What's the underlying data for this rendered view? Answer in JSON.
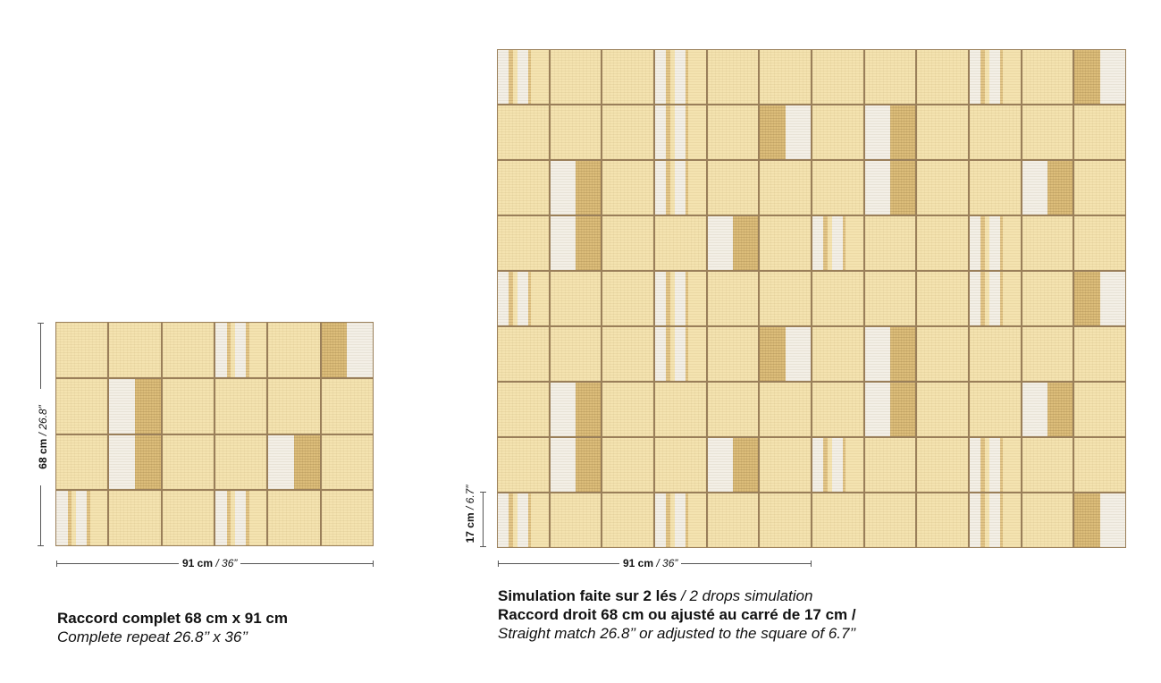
{
  "left_panel": {
    "cols": 6,
    "rows": 4,
    "height_label": {
      "metric": "68 cm",
      "sep": " / ",
      "imperial": "26.8”"
    },
    "width_label": {
      "metric": "91 cm",
      "sep": " / ",
      "imperial": "36”"
    },
    "caption_bold": "Raccord complet 68 cm x 91 cm",
    "caption_italic": "Complete repeat 26.8’’ x 36’’"
  },
  "right_panel": {
    "cols": 12,
    "rows": 9,
    "height_label": {
      "metric": "17 cm",
      "sep": " / ",
      "imperial": "6.7”"
    },
    "width_label": {
      "metric": "91 cm",
      "sep": " / ",
      "imperial": "36”"
    },
    "caption_line1_bold": "Simulation faite sur 2 lés",
    "caption_line1_italic": " / 2 drops simulation",
    "caption_line2_bold": "Raccord droit 68 cm ou ajusté au carré de 17 cm /",
    "caption_line3_italic": "Straight match 26.8’’ or adjusted to the square of 6.7’’"
  },
  "colors": {
    "cream": "#f4e3b0",
    "white": "#f3efe6",
    "tan": "#dcbd7a",
    "grout": "#9a7f5a"
  },
  "tile_types": {
    "P": "plain",
    "S": "stripes-white-cream",
    "W": "white-left-tan-right",
    "T": "tan-left-white-right",
    "C": "cream-left-tan-right"
  },
  "left_pattern": [
    [
      "P",
      "P",
      "P",
      "S",
      "P",
      "T"
    ],
    [
      "P",
      "W",
      "P",
      "P",
      "P",
      "P"
    ],
    [
      "P",
      "W",
      "P",
      "P",
      "W",
      "P"
    ],
    [
      "S",
      "P",
      "P",
      "S",
      "P",
      "P"
    ]
  ],
  "right_pattern": [
    [
      "S",
      "P",
      "P",
      "S",
      "P",
      "P",
      "P",
      "P",
      "P",
      "S",
      "P",
      "T"
    ],
    [
      "P",
      "P",
      "P",
      "S",
      "P",
      "T",
      "P",
      "W",
      "P",
      "P",
      "P",
      "P"
    ],
    [
      "P",
      "W",
      "P",
      "S",
      "P",
      "P",
      "P",
      "W",
      "P",
      "P",
      "W",
      "P"
    ],
    [
      "P",
      "W",
      "P",
      "P",
      "W",
      "P",
      "S",
      "P",
      "P",
      "S",
      "P",
      "P"
    ],
    [
      "S",
      "P",
      "P",
      "S",
      "P",
      "P",
      "P",
      "P",
      "P",
      "S",
      "P",
      "T"
    ],
    [
      "P",
      "P",
      "P",
      "S",
      "P",
      "T",
      "P",
      "W",
      "P",
      "P",
      "P",
      "P"
    ],
    [
      "P",
      "W",
      "P",
      "P",
      "P",
      "P",
      "P",
      "W",
      "P",
      "P",
      "W",
      "P"
    ],
    [
      "P",
      "W",
      "P",
      "P",
      "W",
      "P",
      "S",
      "P",
      "P",
      "S",
      "P",
      "P"
    ],
    [
      "S",
      "P",
      "P",
      "S",
      "P",
      "P",
      "P",
      "P",
      "P",
      "S",
      "P",
      "T"
    ]
  ]
}
